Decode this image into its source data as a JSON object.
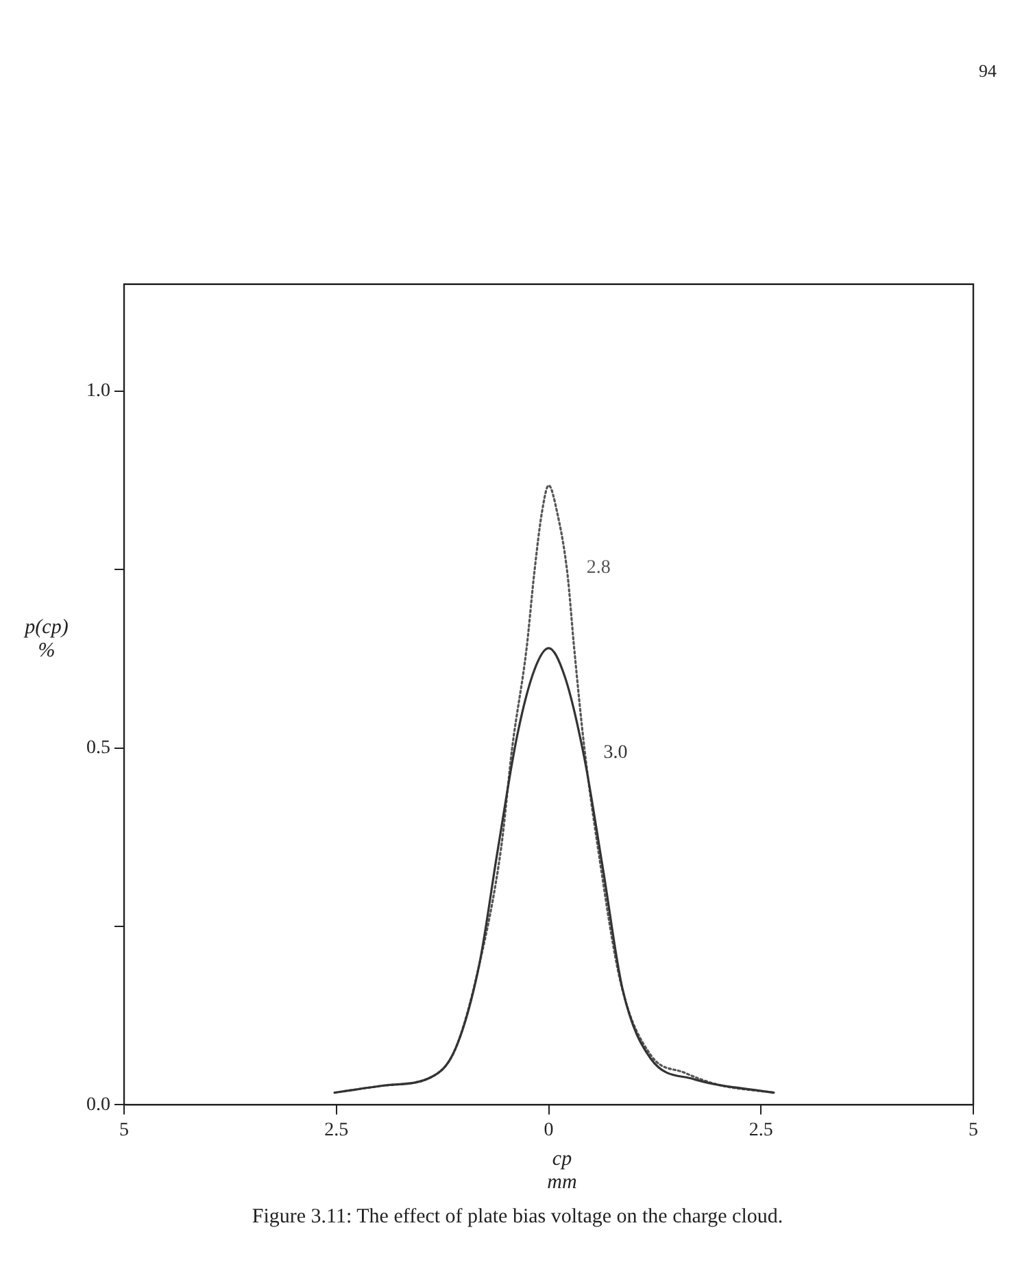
{
  "chart_data": {
    "type": "line",
    "xlabel": "cp\nmm",
    "ylabel": "p(cp)\n%",
    "xlim": [
      -5,
      5
    ],
    "ylim": [
      0,
      1.15
    ],
    "xticks": [
      {
        "value": -5,
        "label": "5"
      },
      {
        "value": -2.5,
        "label": "2.5"
      },
      0,
      2.5,
      5
    ],
    "yticks": [
      {
        "value": 0,
        "label": "0.0"
      },
      {
        "value": 0.25,
        "label": null
      },
      {
        "value": 0.5,
        "label": "0.5"
      },
      {
        "value": 0.75,
        "label": null
      },
      {
        "value": 1,
        "label": "1.0"
      }
    ],
    "grid": false,
    "legend": false,
    "marker": "none",
    "series": [
      {
        "name": "3.0",
        "color": "#333333",
        "line_style": "solid",
        "x": [
          -2.52,
          -1.94,
          -1.38,
          -1.1,
          -0.82,
          -0.6,
          -0.37,
          -0.17,
          0,
          0.19,
          0.42,
          0.64,
          0.87,
          1.2,
          1.71,
          2.65
        ],
        "values": [
          0.017,
          0.027,
          0.039,
          0.078,
          0.195,
          0.357,
          0.518,
          0.609,
          0.64,
          0.6,
          0.486,
          0.33,
          0.162,
          0.065,
          0.036,
          0.017
        ]
      },
      {
        "name": "2.8",
        "color": "#555555",
        "line_style": "dotted",
        "x": [
          -2.52,
          -1.94,
          -1.38,
          -1.1,
          -0.82,
          -0.56,
          -0.43,
          -0.26,
          -0.17,
          -0.08,
          0,
          0.1,
          0.22,
          0.3,
          0.42,
          0.58,
          0.85,
          1.2,
          1.6,
          2.0,
          2.65
        ],
        "values": [
          0.017,
          0.027,
          0.039,
          0.078,
          0.195,
          0.36,
          0.5,
          0.64,
          0.745,
          0.83,
          0.868,
          0.83,
          0.745,
          0.64,
          0.5,
          0.36,
          0.17,
          0.07,
          0.045,
          0.028,
          0.017
        ]
      }
    ],
    "annotations": [
      "94",
      "Figure 3.11: The effect of plate bias voltage on the charge cloud."
    ]
  }
}
